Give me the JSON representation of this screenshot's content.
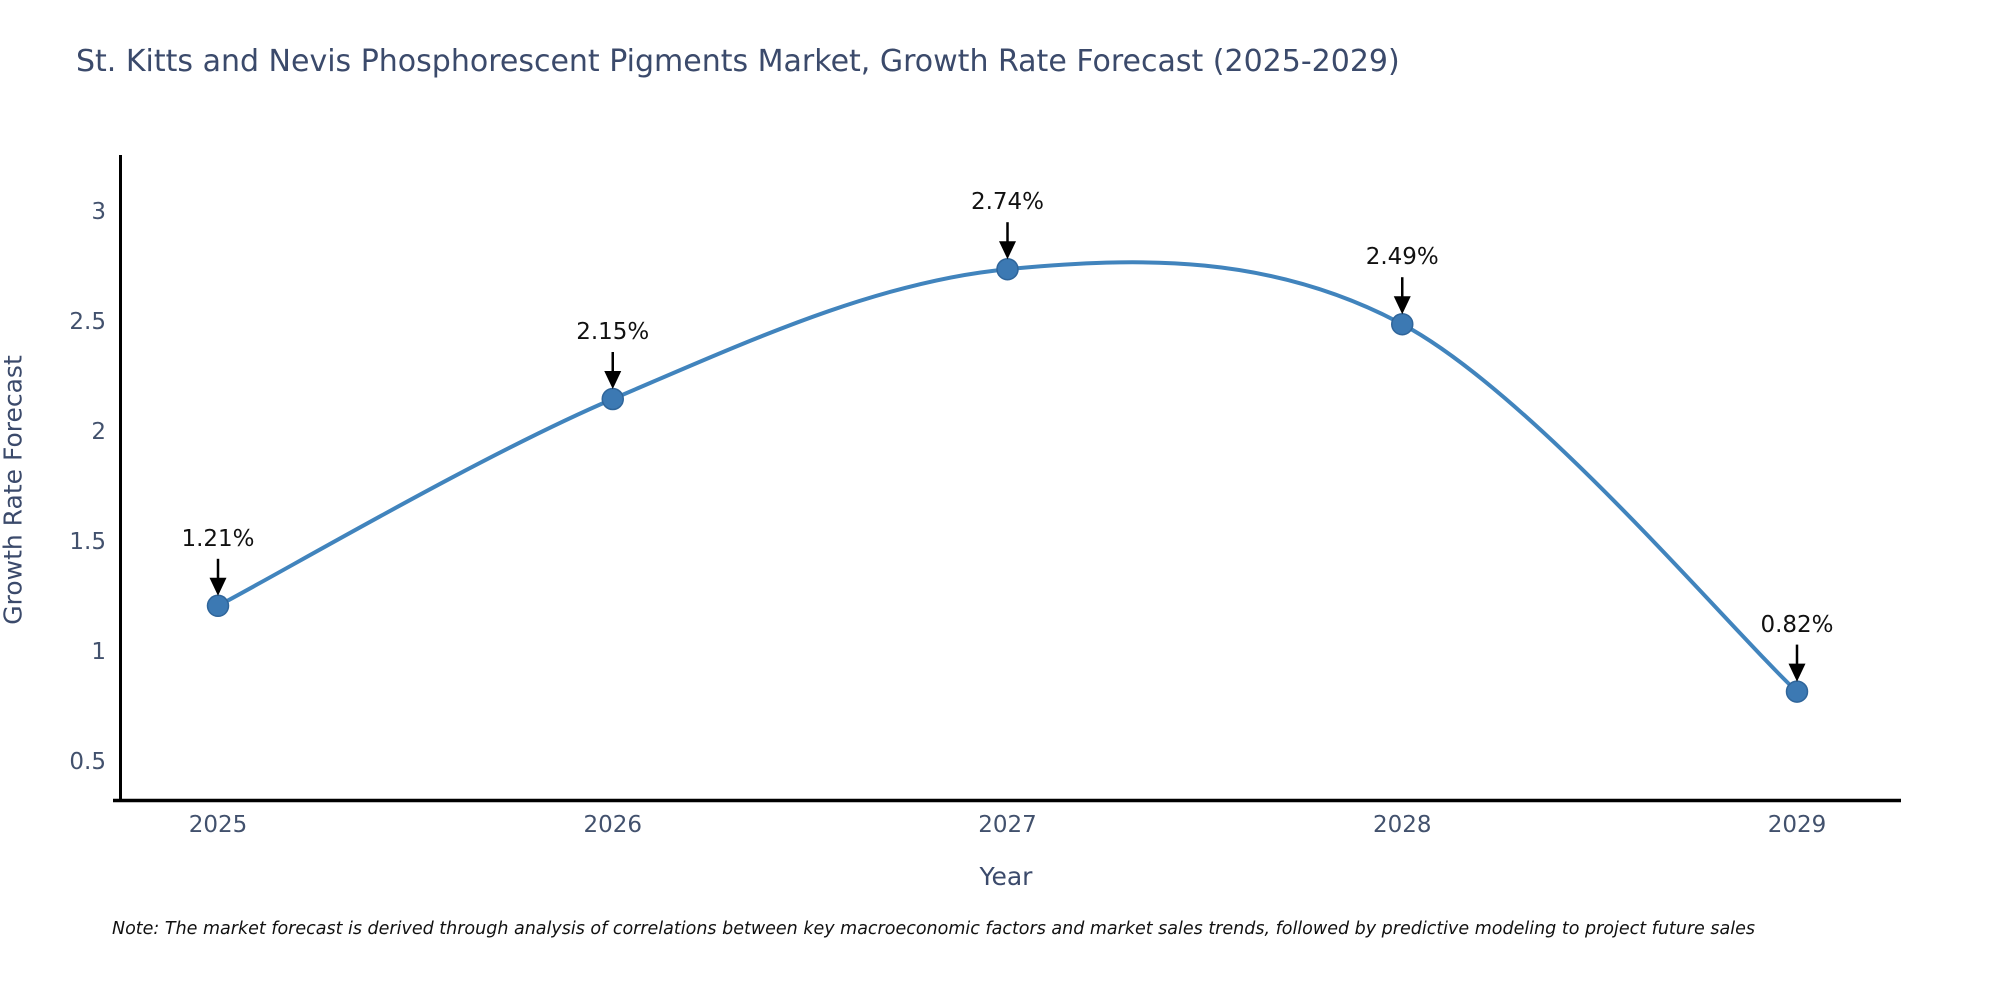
{
  "chart_data": {
    "type": "line",
    "title": "St. Kitts and Nevis Phosphorescent Pigments Market, Growth Rate Forecast (2025-2029)",
    "xlabel": "Year",
    "ylabel": "Growth Rate Forecast",
    "x": [
      2025,
      2026,
      2027,
      2028,
      2029
    ],
    "y": [
      1.21,
      2.15,
      2.74,
      2.49,
      0.82
    ],
    "point_labels": [
      "1.21%",
      "2.15%",
      "2.74%",
      "2.49%",
      "0.82%"
    ],
    "xtick_labels": [
      "2025",
      "2026",
      "2027",
      "2028",
      "2029"
    ],
    "ytick_values": [
      0.5,
      1,
      1.5,
      2,
      2.5,
      3
    ],
    "ytick_labels": [
      "0.5",
      "1",
      "1.5",
      "2",
      "2.5",
      "3"
    ],
    "ylim": [
      0.33,
      3.26
    ],
    "grid": false,
    "legend": "none",
    "line_shape": "spline",
    "colors": {
      "line": "#4184bd",
      "marker_fill": "#3c79b3",
      "marker_edge": "#2f659a",
      "axis": "#000000",
      "arrow": "#000000",
      "title_text": "#3b4a6b",
      "tick_text": "#42516d",
      "annotation_text": "#111111"
    }
  },
  "footnote": "Note: The market forecast is derived through analysis of correlations between key macroeconomic factors and market sales trends, followed by predictive modeling to project future sales"
}
